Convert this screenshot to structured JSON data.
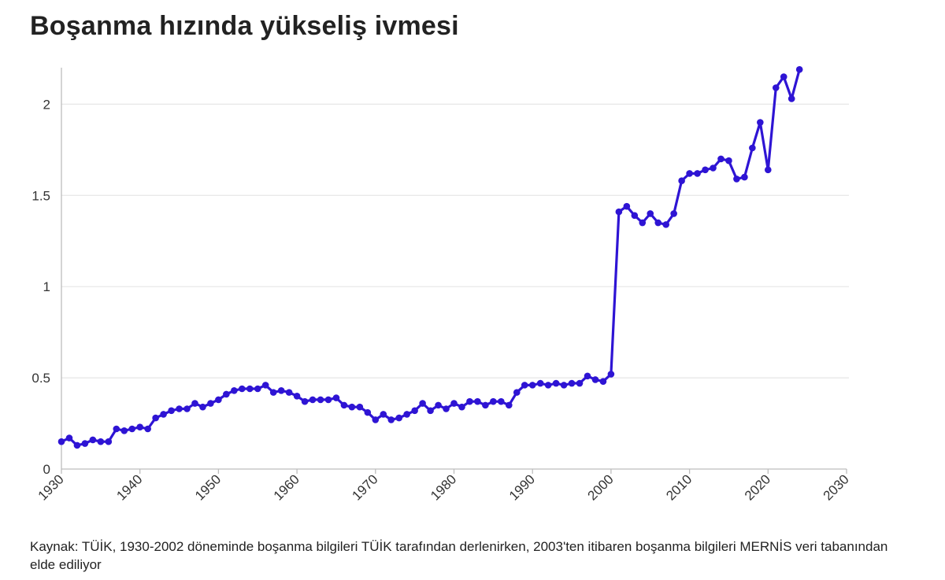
{
  "title": "Boşanma hızında yükseliş ivmesi",
  "source": "Kaynak: TÜİK, 1930-2002 döneminde boşanma bilgileri TÜİK tarafından derlenirken, 2003'ten itibaren boşanma bilgileri MERNİS veri tabanından elde ediliyor",
  "colors": {
    "line": "#2e14d4",
    "grid": "#e6e6e6",
    "axis": "#bdbdbd"
  },
  "chart_data": {
    "type": "line",
    "title": "Boşanma hızında yükseliş ivmesi",
    "xlabel": "",
    "ylabel": "",
    "xlim": [
      1930,
      2030
    ],
    "ylim": [
      0,
      2.2
    ],
    "xticks": [
      1930,
      1940,
      1950,
      1960,
      1970,
      1980,
      1990,
      2000,
      2010,
      2020,
      2030
    ],
    "yticks": [
      0,
      0.5,
      1,
      1.5,
      2
    ],
    "ytick_labels": [
      "0",
      "0.5",
      "1",
      "1.5",
      "2"
    ],
    "grid": "horizontal",
    "legend": "none",
    "series": [
      {
        "x": [
          1930,
          1931,
          1932,
          1933,
          1934,
          1935,
          1936,
          1937,
          1938,
          1939,
          1940,
          1941,
          1942,
          1943,
          1944,
          1945,
          1946,
          1947,
          1948,
          1949,
          1950,
          1951,
          1952,
          1953,
          1954,
          1955,
          1956,
          1957,
          1958,
          1959,
          1960,
          1961,
          1962,
          1963,
          1964,
          1965,
          1966,
          1967,
          1968,
          1969,
          1970,
          1971,
          1972,
          1973,
          1974,
          1975,
          1976,
          1977,
          1978,
          1979,
          1980,
          1981,
          1982,
          1983,
          1984,
          1985,
          1986,
          1987,
          1988,
          1989,
          1990,
          1991,
          1992,
          1993,
          1994,
          1995,
          1996,
          1997,
          1998,
          1999,
          2000,
          2001,
          2002,
          2003,
          2004,
          2005,
          2006,
          2007,
          2008,
          2009,
          2010,
          2011,
          2012,
          2013,
          2014,
          2015,
          2016,
          2017,
          2018,
          2019,
          2020,
          2021,
          2022,
          2023,
          2024
        ],
        "y": [
          0.15,
          0.17,
          0.13,
          0.14,
          0.16,
          0.15,
          0.15,
          0.22,
          0.21,
          0.22,
          0.23,
          0.22,
          0.28,
          0.3,
          0.32,
          0.33,
          0.33,
          0.36,
          0.34,
          0.36,
          0.38,
          0.41,
          0.43,
          0.44,
          0.44,
          0.44,
          0.46,
          0.42,
          0.43,
          0.42,
          0.4,
          0.37,
          0.38,
          0.38,
          0.38,
          0.39,
          0.35,
          0.34,
          0.34,
          0.31,
          0.27,
          0.3,
          0.27,
          0.28,
          0.3,
          0.32,
          0.36,
          0.32,
          0.35,
          0.33,
          0.36,
          0.34,
          0.37,
          0.37,
          0.35,
          0.37,
          0.37,
          0.35,
          0.42,
          0.46,
          0.46,
          0.47,
          0.46,
          0.47,
          0.46,
          0.47,
          0.47,
          0.51,
          0.49,
          0.48,
          0.52,
          1.41,
          1.44,
          1.39,
          1.35,
          1.4,
          1.35,
          1.34,
          1.4,
          1.58,
          1.62,
          1.62,
          1.64,
          1.65,
          1.7,
          1.69,
          1.59,
          1.6,
          1.76,
          1.9,
          1.64,
          2.09,
          2.15,
          2.03,
          2.19
        ]
      }
    ]
  }
}
